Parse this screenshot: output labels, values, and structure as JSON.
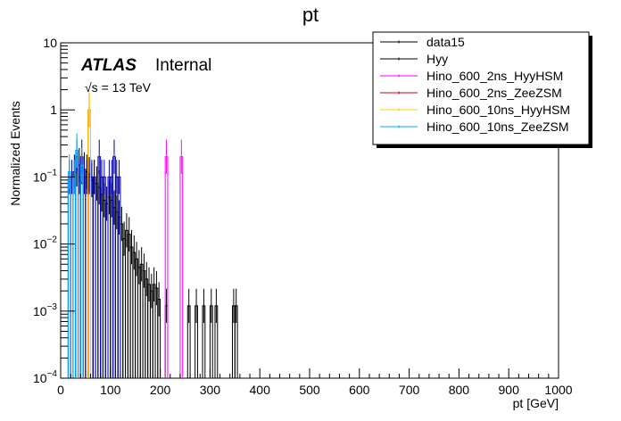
{
  "chart_data": {
    "type": "histogram",
    "title": "pt",
    "xlabel": "pt [GeV]",
    "ylabel": "Normalized Events",
    "xlim": [
      0,
      1000
    ],
    "ylim": [
      0.0001,
      10
    ],
    "yscale": "log",
    "bin_width": 5,
    "x_ticks": [
      0,
      100,
      200,
      300,
      400,
      500,
      600,
      700,
      800,
      900,
      1000
    ],
    "y_ticks": [
      {
        "value": 0.0001,
        "base": "10",
        "exp": "−4"
      },
      {
        "value": 0.001,
        "base": "10",
        "exp": "−3"
      },
      {
        "value": 0.01,
        "base": "10",
        "exp": "−2"
      },
      {
        "value": 0.1,
        "base": "10",
        "exp": "−1"
      },
      {
        "value": 1,
        "base": "1",
        "exp": ""
      },
      {
        "value": 10,
        "base": "10",
        "exp": ""
      }
    ],
    "annotations": {
      "experiment": "ATLAS",
      "status": "Internal",
      "energy": "√s = 13 TeV"
    },
    "legend": {
      "position": "top-right",
      "entries": [
        {
          "label": "data15",
          "color": "#000000"
        },
        {
          "label": "Hyy",
          "color": "#000000"
        },
        {
          "label": "Hino_600_2ns_HyyHSM",
          "color": "#ff00ff"
        },
        {
          "label": "Hino_600_2ns_ZeeZSM",
          "color": "#cc0000"
        },
        {
          "label": "Hino_600_10ns_HyyHSM",
          "color": "#ffcc00"
        },
        {
          "label": "Hino_600_10ns_ZeeZSM",
          "color": "#00aaff"
        }
      ]
    },
    "series": [
      {
        "name": "data15",
        "color": "#000000",
        "errorbars": true,
        "bins": [
          [
            25,
            0.12
          ],
          [
            30,
            0.13
          ],
          [
            35,
            0.15
          ],
          [
            40,
            0.14
          ],
          [
            45,
            0.13
          ],
          [
            50,
            0.12
          ],
          [
            55,
            0.11
          ],
          [
            60,
            0.09
          ],
          [
            65,
            0.1
          ],
          [
            70,
            0.08
          ],
          [
            75,
            0.07
          ],
          [
            80,
            0.055
          ],
          [
            85,
            0.045
          ],
          [
            90,
            0.04
          ],
          [
            95,
            0.05
          ],
          [
            100,
            0.045
          ],
          [
            105,
            0.035
          ],
          [
            110,
            0.03
          ],
          [
            115,
            0.025
          ],
          [
            120,
            0.02
          ],
          [
            125,
            0.012
          ],
          [
            130,
            0.016
          ],
          [
            135,
            0.014
          ],
          [
            140,
            0.009
          ],
          [
            145,
            0.0075
          ],
          [
            150,
            0.006
          ],
          [
            155,
            0.0045
          ],
          [
            160,
            0.005
          ],
          [
            165,
            0.004
          ],
          [
            170,
            0.003
          ],
          [
            175,
            0.0025
          ],
          [
            180,
            0.002
          ],
          [
            185,
            0.0025
          ],
          [
            190,
            0.0022
          ],
          [
            195,
            0.0015
          ],
          [
            210,
            0.0012
          ],
          [
            255,
            0.0012
          ],
          [
            270,
            0.0012
          ],
          [
            285,
            0.0012
          ],
          [
            300,
            0.0012
          ],
          [
            310,
            0.0012
          ],
          [
            345,
            0.0012
          ],
          [
            350,
            0.0012
          ]
        ]
      },
      {
        "name": "Hyy",
        "color": "#0000aa",
        "errorbars": true,
        "bins": [
          [
            15,
            0.1
          ],
          [
            20,
            0.1
          ],
          [
            25,
            0.1
          ],
          [
            30,
            0.2
          ],
          [
            35,
            0.1
          ],
          [
            40,
            0.2
          ],
          [
            45,
            0.1
          ],
          [
            50,
            0.1
          ],
          [
            55,
            0.1
          ],
          [
            60,
            0.1
          ],
          [
            65,
            0.1
          ],
          [
            75,
            0.2
          ],
          [
            80,
            0.1
          ],
          [
            85,
            0.1
          ],
          [
            95,
            0.1
          ],
          [
            100,
            0.1
          ],
          [
            105,
            0.2
          ],
          [
            110,
            0.1
          ],
          [
            115,
            0.1
          ]
        ]
      },
      {
        "name": "Hino_600_2ns_HyyHSM",
        "color": "#ff00ff",
        "errorbars": true,
        "bins": [
          [
            210,
            0.2
          ],
          [
            240,
            0.2
          ]
        ]
      },
      {
        "name": "Hino_600_2ns_ZeeZSM",
        "color": "#cc0000",
        "errorbars": true,
        "bins": [
          [
            55,
            1.0
          ]
        ]
      },
      {
        "name": "Hino_600_10ns_HyyHSM",
        "color": "#ffcc00",
        "errorbars": true,
        "bins": [
          [
            55,
            1.0
          ]
        ]
      },
      {
        "name": "Hino_600_10ns_ZeeZSM",
        "color": "#00aaff",
        "errorbars": true,
        "bins": [
          [
            15,
            0.12
          ],
          [
            25,
            0.1
          ],
          [
            30,
            0.25
          ],
          [
            40,
            0.15
          ]
        ]
      }
    ]
  }
}
